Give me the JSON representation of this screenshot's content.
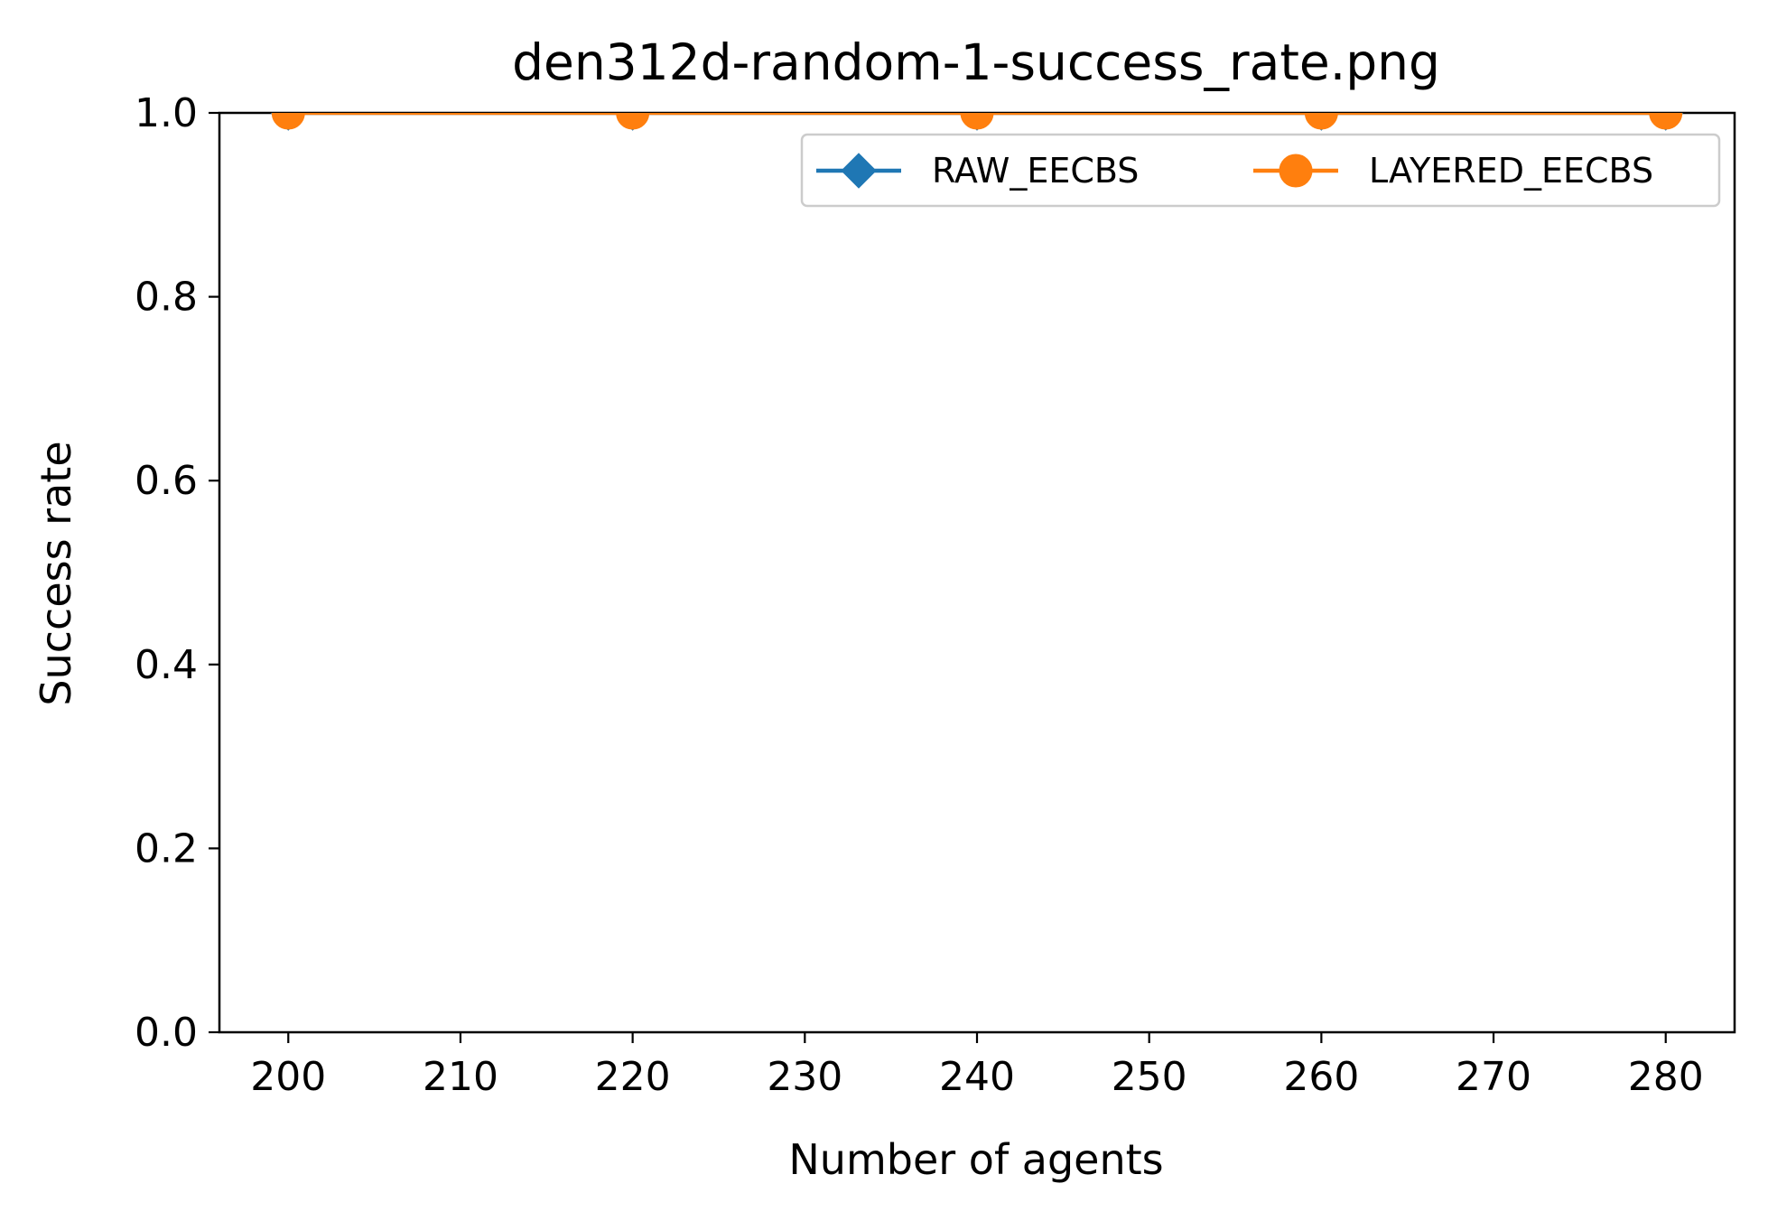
{
  "chart_data": {
    "type": "line",
    "title": "den312d-random-1-success_rate.png",
    "xlabel": "Number of agents",
    "ylabel": "Success rate",
    "x": [
      200,
      220,
      240,
      260,
      280
    ],
    "xlim": [
      196,
      284
    ],
    "ylim": [
      0.0,
      1.0
    ],
    "xticks": [
      200,
      210,
      220,
      230,
      240,
      250,
      260,
      270,
      280
    ],
    "yticks": [
      0.0,
      0.2,
      0.4,
      0.6,
      0.8,
      1.0
    ],
    "xtick_labels": [
      "200",
      "210",
      "220",
      "230",
      "240",
      "250",
      "260",
      "270",
      "280"
    ],
    "ytick_labels": [
      "0.0",
      "0.2",
      "0.4",
      "0.6",
      "0.8",
      "1.0"
    ],
    "grid": false,
    "legend_position": "top-right",
    "series": [
      {
        "name": "RAW_EECBS",
        "values": [
          1.0,
          1.0,
          1.0,
          1.0,
          1.0
        ],
        "color": "#1f77b4",
        "marker": "diamond"
      },
      {
        "name": "LAYERED_EECBS",
        "values": [
          1.0,
          1.0,
          1.0,
          1.0,
          1.0
        ],
        "color": "#ff7f0e",
        "marker": "circle"
      }
    ]
  }
}
